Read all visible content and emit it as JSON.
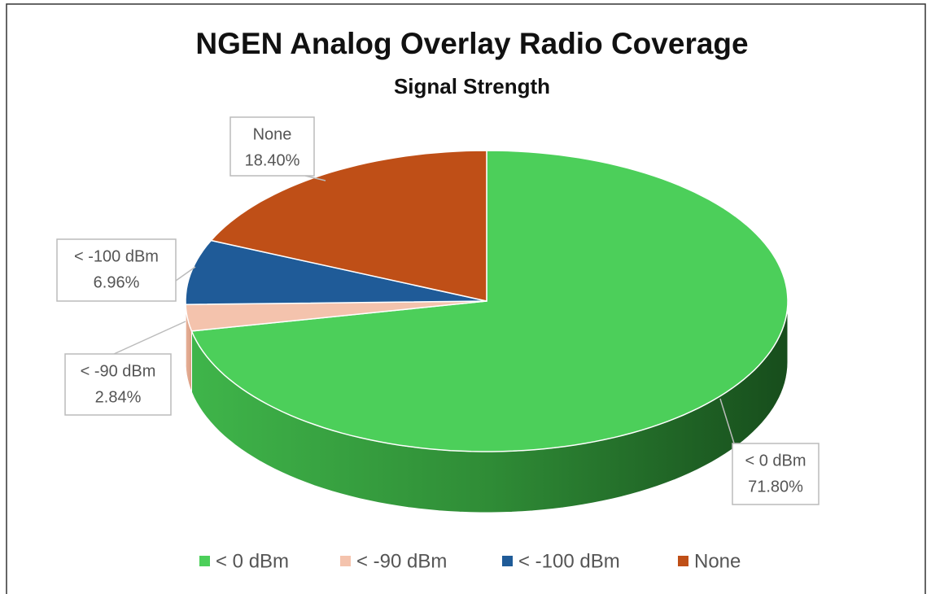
{
  "chart_data": {
    "type": "pie3d",
    "title": "NGEN Analog Overlay Radio Coverage",
    "subtitle": "Signal Strength",
    "categories": [
      "< 0 dBm",
      "< -90 dBm",
      "< -100 dBm",
      "None"
    ],
    "values": [
      71.8,
      2.84,
      6.96,
      18.4
    ],
    "value_labels": [
      "71.80%",
      "2.84%",
      "6.96%",
      "18.40%"
    ],
    "colors": [
      "#4ccf5a",
      "#f4c3ad",
      "#1f5b98",
      "#bf4f17"
    ],
    "legend": "bottom"
  }
}
